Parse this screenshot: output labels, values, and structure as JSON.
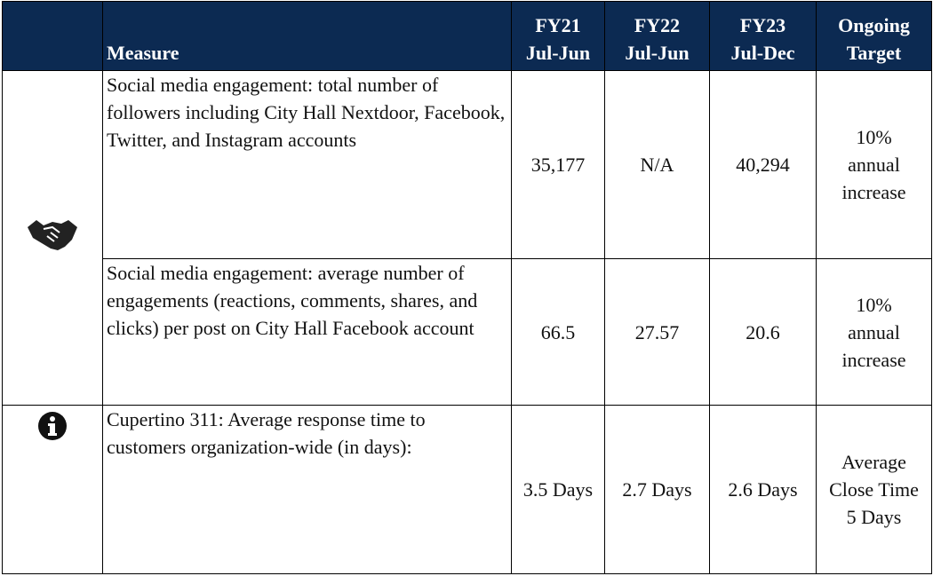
{
  "table": {
    "header": [
      [
        "Measure"
      ],
      [
        "FY21",
        "Jul-Jun"
      ],
      [
        "FY22",
        "Jul-Jun"
      ],
      [
        "FY23",
        "Jul-Dec"
      ],
      [
        "Ongoing",
        "Target"
      ]
    ],
    "rows": [
      [
        "Social media engagement: total number of followers including City Hall Nextdoor, Facebook, Twitter, and Instagram accounts",
        "35,177",
        "N/A",
        "40,294",
        "10% annual increase"
      ],
      [
        "Social media engagement: average number of engagements (reactions, comments, shares, and clicks) per post on City Hall Facebook account",
        "66.5",
        "27.57",
        "20.6",
        "10% annual increase"
      ],
      [
        "Cupertino 311: Average response time to customers organization-wide (in days):",
        "3.5 Days",
        "2.7 Days",
        "2.6 Days",
        "Average Close Time 5 Days"
      ]
    ]
  }
}
